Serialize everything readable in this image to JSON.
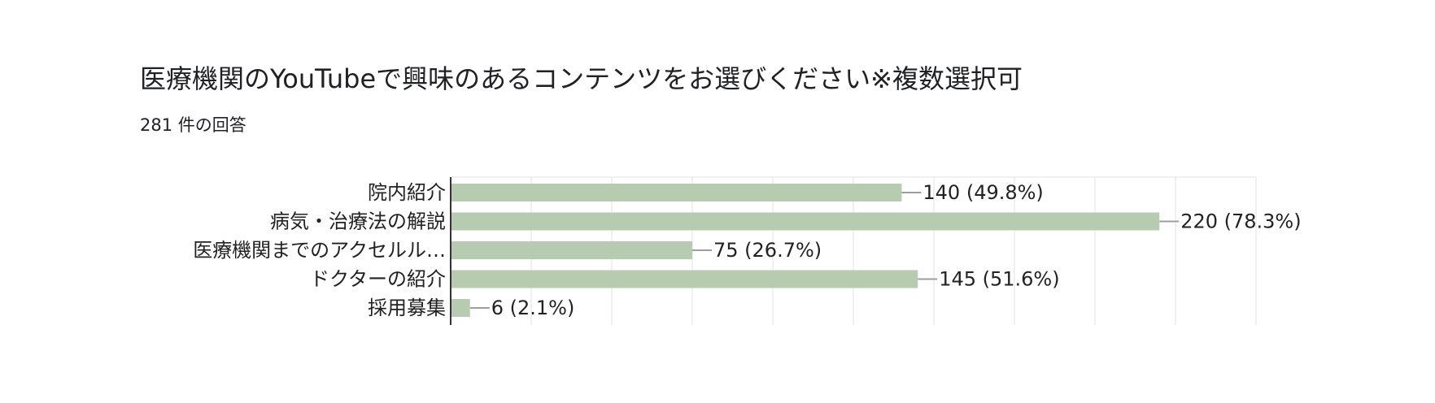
{
  "title": "医療機関のYouTubeで興味のあるコンテンツをお選びください※複数選択可",
  "subtitle": "281 件の回答",
  "colors": {
    "bar": "#b7cbb0",
    "grid": "#ececec",
    "axis": "#333333",
    "leader": "#9e9e9e"
  },
  "chart_data": {
    "type": "bar",
    "orientation": "horizontal",
    "categories": [
      "院内紹介",
      "病気・治療法の解説",
      "医療機関までのアクセルル…",
      "ドクターの紹介",
      "採用募集"
    ],
    "values": [
      140,
      220,
      75,
      145,
      6
    ],
    "value_labels": [
      "140 (49.8%)",
      "220 (78.3%)",
      "75 (26.7%)",
      "145 (51.6%)",
      "6 (2.1%)"
    ],
    "xlim": [
      0,
      250
    ],
    "grid": true
  }
}
